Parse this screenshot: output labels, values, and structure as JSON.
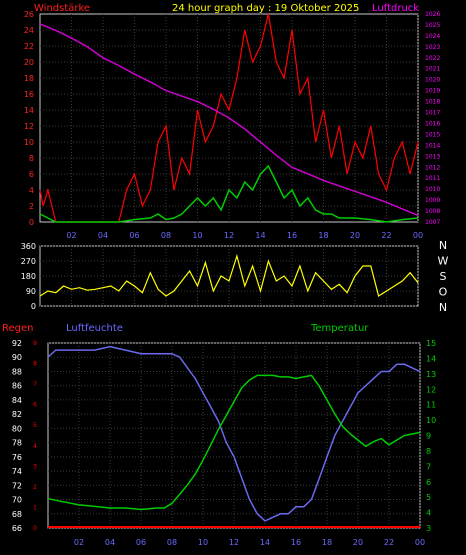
{
  "header": {
    "left_label": "Windstärke",
    "title": "24 hour graph day : 19 Oktober 2025",
    "right_label": "Luftdruck"
  },
  "colors": {
    "background": "#000000",
    "grid": "#3a3a3a",
    "wind": "#ff0000",
    "gust": "#00cc00",
    "pressure": "#cc00cc",
    "direction": "#ffff00",
    "rain": "#ff0000",
    "humidity": "#6a6aee",
    "temperature": "#00cc00",
    "title": "#ffff00",
    "axis_left_top": "#ff2020",
    "axis_right_top": "#ff00ff",
    "axis_time": "#6a6aff",
    "direction_tick": "#ffffff",
    "frame": "#c8c8c8"
  },
  "x_ticks": [
    "02",
    "04",
    "06",
    "08",
    "10",
    "12",
    "14",
    "16",
    "18",
    "20",
    "22",
    "00"
  ],
  "wind_axis": [
    "0",
    "2",
    "4",
    "6",
    "8",
    "10",
    "12",
    "14",
    "16",
    "18",
    "20",
    "22",
    "24",
    "26"
  ],
  "pressure_axis": [
    "1007",
    "1008",
    "1009",
    "1010",
    "1011",
    "1012",
    "1013",
    "1014",
    "1015",
    "1016",
    "1017",
    "1018",
    "1019",
    "1020",
    "1021",
    "1022",
    "1023",
    "1024",
    "1025",
    "1026"
  ],
  "direction_axis": [
    "0",
    "90",
    "180",
    "270",
    "360"
  ],
  "direction_letters": [
    "N",
    "W",
    "S",
    "O",
    "N"
  ],
  "lower_labels": {
    "rain": "Regen",
    "humidity": "Luftfeuchte",
    "temperature": "Temperatur"
  },
  "humidity_axis": [
    "66",
    "68",
    "70",
    "72",
    "74",
    "76",
    "78",
    "80",
    "82",
    "84",
    "86",
    "88",
    "90",
    "92"
  ],
  "temperature_axis": [
    "3",
    "4",
    "5",
    "6",
    "7",
    "8",
    "9",
    "10",
    "11",
    "12",
    "13",
    "14",
    "15"
  ],
  "rain_axis": [
    "0",
    "1",
    "2",
    "3",
    "4",
    "5",
    "6",
    "7",
    "8",
    "9"
  ],
  "chart_data": [
    {
      "type": "line",
      "x_unit": "hour",
      "xlim": [
        0,
        24
      ],
      "series": [
        {
          "axis": "left",
          "ylim": [
            0,
            26
          ],
          "x": [
            0,
            0.2,
            0.5,
            1,
            1.5,
            2,
            3,
            4,
            5,
            5.5,
            6,
            6.5,
            7,
            7.5,
            8,
            8.5,
            9,
            9.5,
            10,
            10.5,
            11,
            11.5,
            12,
            12.5,
            13,
            13.5,
            14,
            14.5,
            15,
            15.5,
            16,
            16.5,
            17,
            17.5,
            18,
            18.5,
            19,
            19.5,
            20,
            20.5,
            21,
            21.5,
            22,
            22.5,
            23,
            23.5,
            24
          ],
          "values": [
            4,
            2,
            4,
            0,
            0,
            0,
            0,
            0,
            0,
            4,
            6,
            2,
            4,
            10,
            12,
            4,
            8,
            6,
            14,
            10,
            12,
            16,
            14,
            18,
            24,
            20,
            22,
            26,
            20,
            18,
            24,
            16,
            18,
            10,
            14,
            8,
            12,
            6,
            10,
            8,
            12,
            6,
            4,
            8,
            10,
            6,
            10
          ]
        },
        {
          "axis": "left",
          "ylim": [
            0,
            26
          ],
          "x": [
            0,
            1,
            2,
            3,
            4,
            5,
            6,
            7,
            7.5,
            8,
            8.5,
            9,
            9.5,
            10,
            10.5,
            11,
            11.5,
            12,
            12.5,
            13,
            13.5,
            14,
            14.5,
            15,
            15.5,
            16,
            16.5,
            17,
            17.5,
            18,
            18.5,
            19,
            20,
            21,
            22,
            23,
            24
          ],
          "values": [
            1,
            0,
            0,
            0,
            0,
            0,
            0.3,
            0.5,
            1,
            0.3,
            0.5,
            1,
            2,
            3,
            2,
            3,
            1.5,
            4,
            3,
            5,
            4,
            6,
            7,
            5,
            3,
            4,
            2,
            3,
            1.5,
            1,
            1,
            0.5,
            0.5,
            0.3,
            0,
            0.3,
            0.5
          ]
        },
        {
          "axis": "right",
          "ylim": [
            1007,
            1026
          ],
          "x": [
            0,
            1,
            2,
            3,
            4,
            5,
            6,
            7,
            8,
            9,
            10,
            11,
            12,
            13,
            14,
            15,
            16,
            17,
            18,
            19,
            20,
            21,
            22,
            23,
            24
          ],
          "values": [
            1025.1,
            1024.5,
            1023.8,
            1023,
            1022,
            1021.3,
            1020.5,
            1019.8,
            1019,
            1018.5,
            1018,
            1017.3,
            1016.5,
            1015.5,
            1014.3,
            1013.1,
            1012,
            1011.4,
            1010.8,
            1010.3,
            1009.8,
            1009.3,
            1008.8,
            1008.2,
            1007.6
          ]
        }
      ]
    },
    {
      "type": "line",
      "x_unit": "hour",
      "xlim": [
        0,
        24
      ],
      "ylim": [
        0,
        360
      ],
      "x": [
        0,
        0.5,
        1,
        1.5,
        2,
        2.5,
        3,
        3.5,
        4,
        4.5,
        5,
        5.5,
        6,
        6.5,
        7,
        7.5,
        8,
        8.5,
        9,
        9.5,
        10,
        10.5,
        11,
        11.5,
        12,
        12.5,
        13,
        13.5,
        14,
        14.5,
        15,
        15.5,
        16,
        16.5,
        17,
        17.5,
        18,
        18.5,
        19,
        19.5,
        20,
        20.5,
        21,
        21.5,
        22,
        22.5,
        23,
        23.5,
        24
      ],
      "values": [
        60,
        90,
        80,
        120,
        100,
        110,
        95,
        100,
        110,
        120,
        90,
        150,
        120,
        80,
        200,
        100,
        60,
        90,
        150,
        210,
        120,
        260,
        90,
        180,
        150,
        300,
        120,
        240,
        90,
        270,
        150,
        180,
        120,
        240,
        90,
        200,
        150,
        100,
        130,
        80,
        180,
        240,
        240,
        60,
        90,
        120,
        150,
        200,
        140
      ]
    },
    {
      "type": "line",
      "x_unit": "hour",
      "xlim": [
        0,
        24
      ],
      "series": [
        {
          "name": "Luftfeuchte",
          "axis": "left",
          "ylim": [
            66,
            92
          ],
          "x": [
            0,
            0.5,
            2,
            3,
            4,
            5,
            6,
            7,
            8,
            8.5,
            9,
            9.5,
            10,
            10.5,
            11,
            11.5,
            12,
            12.5,
            13,
            13.5,
            14,
            14.5,
            15,
            15.5,
            16,
            16.5,
            17,
            17.5,
            18,
            18.5,
            19,
            19.5,
            20,
            20.5,
            21,
            21.5,
            22,
            22.5,
            23,
            23.5,
            24
          ],
          "values": [
            90,
            91,
            91,
            91,
            91.5,
            91,
            90.5,
            90.5,
            90.5,
            90,
            88.5,
            87,
            85,
            83,
            81,
            78,
            76,
            73,
            70,
            68,
            67,
            67.5,
            68,
            68,
            69,
            69,
            70,
            73,
            76,
            79,
            81,
            83,
            85,
            86,
            87,
            88,
            88,
            89,
            89,
            88.5,
            88
          ]
        },
        {
          "name": "Temperatur",
          "axis": "right",
          "ylim": [
            3,
            15
          ],
          "x": [
            0,
            0.5,
            1,
            2,
            3,
            4,
            5,
            6,
            7,
            7.5,
            8,
            8.5,
            9,
            9.5,
            10,
            10.5,
            11,
            11.5,
            12,
            12.5,
            13,
            13.5,
            14,
            14.5,
            15,
            15.5,
            16,
            16.5,
            17,
            17.5,
            18,
            18.5,
            19,
            19.5,
            20,
            20.5,
            21,
            21.5,
            22,
            22.5,
            23,
            23.5,
            24
          ],
          "values": [
            4.9,
            4.8,
            4.7,
            4.5,
            4.4,
            4.3,
            4.3,
            4.2,
            4.3,
            4.3,
            4.6,
            5.2,
            5.8,
            6.5,
            7.4,
            8.4,
            9.4,
            10.3,
            11.2,
            12.1,
            12.6,
            12.9,
            12.9,
            12.9,
            12.8,
            12.8,
            12.7,
            12.8,
            12.9,
            12.2,
            11.3,
            10.4,
            9.6,
            9.1,
            8.7,
            8.3,
            8.6,
            8.8,
            8.4,
            8.7,
            9.0,
            9.1,
            9.2
          ]
        },
        {
          "name": "Regen",
          "axis": "rain",
          "ylim": [
            0,
            9
          ],
          "x": [
            0,
            8,
            19,
            24
          ],
          "values": [
            0,
            0,
            0,
            0
          ]
        }
      ]
    }
  ]
}
